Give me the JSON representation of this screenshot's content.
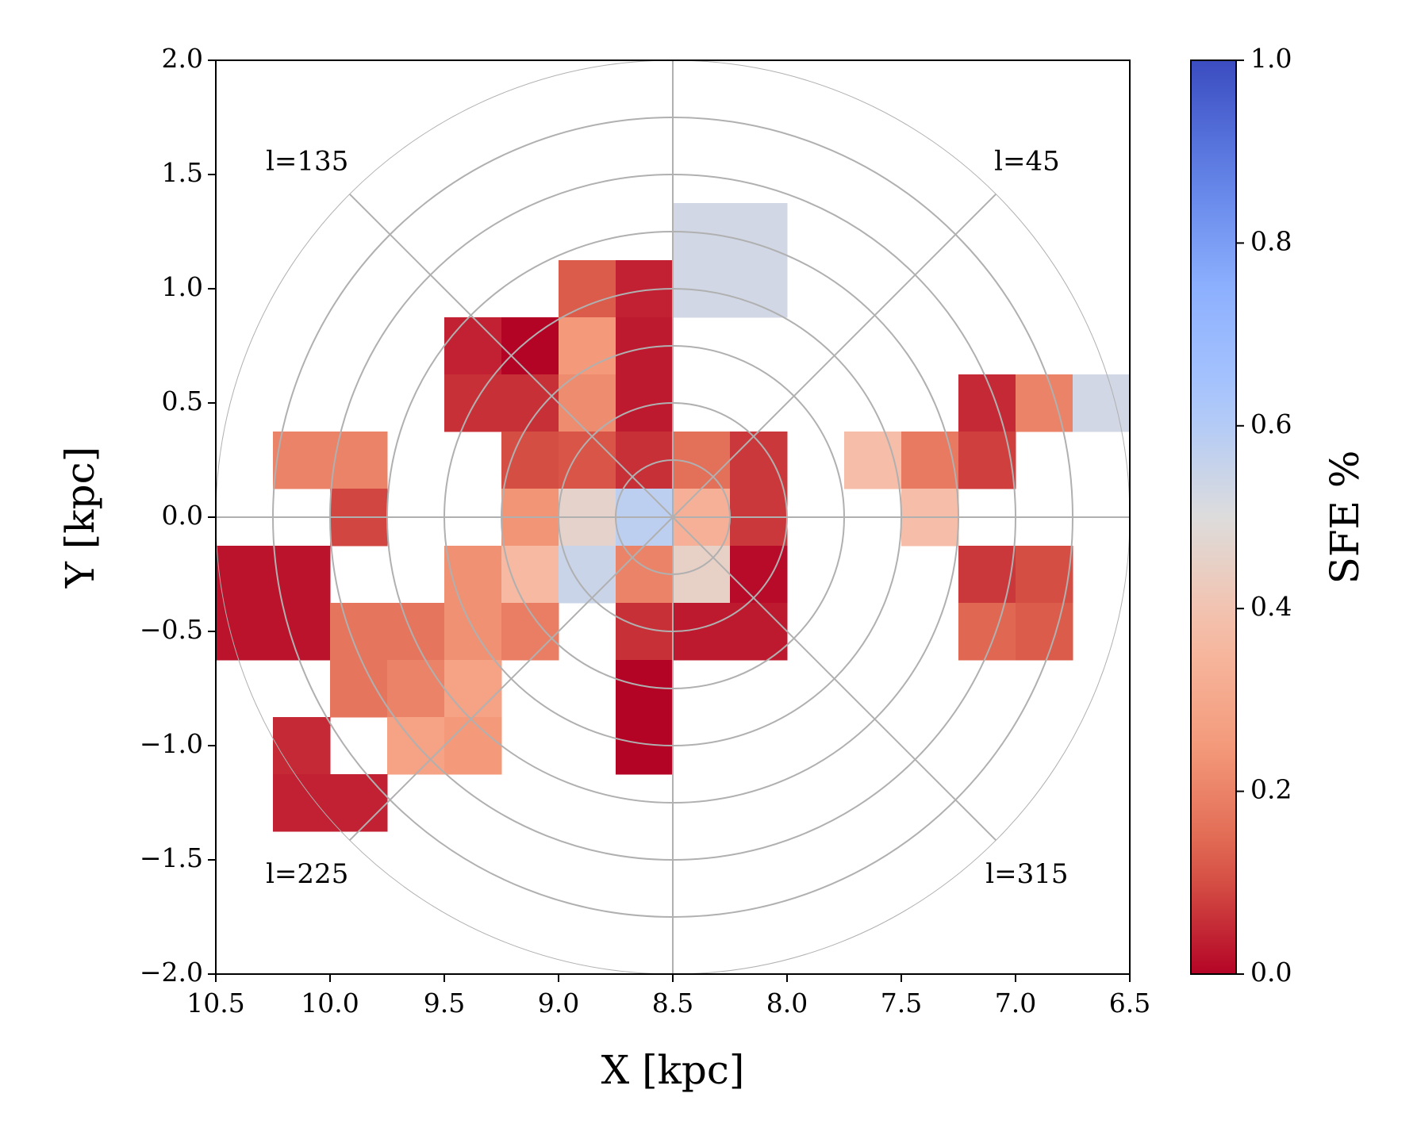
{
  "chart_data": {
    "type": "heatmap",
    "title": "",
    "xlabel": "X [kpc]",
    "ylabel": "Y [kpc]",
    "xlim": [
      10.5,
      6.5
    ],
    "ylim": [
      -2.0,
      2.0
    ],
    "x_ticks": [
      "10.5",
      "10.0",
      "9.5",
      "9.0",
      "8.5",
      "8.0",
      "7.5",
      "7.0",
      "6.5"
    ],
    "y_ticks": [
      "2.0",
      "1.5",
      "1.0",
      "0.5",
      "0.0",
      "−0.5",
      "−1.0",
      "−1.5",
      "−2.0"
    ],
    "polar_grid": {
      "center": [
        8.5,
        0.0
      ],
      "radii_kpc": [
        0.25,
        0.5,
        0.75,
        1.0,
        1.25,
        1.5,
        1.75,
        2.0
      ],
      "spoke_angles_deg": [
        0,
        45,
        90,
        135,
        180,
        225,
        270,
        315
      ]
    },
    "annotations": [
      {
        "text": "l=135",
        "x": 10.1,
        "y": 1.55
      },
      {
        "text": "l=45",
        "x": 6.95,
        "y": 1.55
      },
      {
        "text": "l=225",
        "x": 10.1,
        "y": -1.57
      },
      {
        "text": "l=315",
        "x": 6.95,
        "y": -1.57
      }
    ],
    "colorbar": {
      "label": "SFE %",
      "colormap": "coolwarm_r",
      "range": [
        0.0,
        1.0
      ],
      "ticks": [
        "0.0",
        "0.2",
        "0.4",
        "0.6",
        "0.8",
        "1.0"
      ]
    },
    "cell_size_kpc": 0.25,
    "cells": [
      {
        "x": 8.375,
        "y": 1.25,
        "v": 0.53
      },
      {
        "x": 8.125,
        "y": 1.25,
        "v": 0.53
      },
      {
        "x": 8.375,
        "y": 1.0,
        "v": 0.53
      },
      {
        "x": 8.125,
        "y": 1.0,
        "v": 0.53
      },
      {
        "x": 8.875,
        "y": 1.0,
        "v": 0.12
      },
      {
        "x": 8.625,
        "y": 1.0,
        "v": 0.04
      },
      {
        "x": 9.375,
        "y": 0.75,
        "v": 0.04
      },
      {
        "x": 9.125,
        "y": 0.75,
        "v": 0.0
      },
      {
        "x": 8.875,
        "y": 0.75,
        "v": 0.25
      },
      {
        "x": 8.625,
        "y": 0.75,
        "v": 0.03
      },
      {
        "x": 9.375,
        "y": 0.5,
        "v": 0.06
      },
      {
        "x": 9.125,
        "y": 0.5,
        "v": 0.06
      },
      {
        "x": 8.875,
        "y": 0.5,
        "v": 0.22
      },
      {
        "x": 8.625,
        "y": 0.5,
        "v": 0.03
      },
      {
        "x": 7.125,
        "y": 0.5,
        "v": 0.05
      },
      {
        "x": 6.875,
        "y": 0.5,
        "v": 0.2
      },
      {
        "x": 6.625,
        "y": 0.5,
        "v": 0.53
      },
      {
        "x": 10.125,
        "y": 0.25,
        "v": 0.2
      },
      {
        "x": 9.875,
        "y": 0.25,
        "v": 0.2
      },
      {
        "x": 9.125,
        "y": 0.25,
        "v": 0.1
      },
      {
        "x": 8.875,
        "y": 0.25,
        "v": 0.11
      },
      {
        "x": 8.625,
        "y": 0.25,
        "v": 0.06
      },
      {
        "x": 8.375,
        "y": 0.25,
        "v": 0.16
      },
      {
        "x": 8.125,
        "y": 0.25,
        "v": 0.07
      },
      {
        "x": 7.625,
        "y": 0.25,
        "v": 0.38
      },
      {
        "x": 7.375,
        "y": 0.25,
        "v": 0.18
      },
      {
        "x": 7.125,
        "y": 0.25,
        "v": 0.08
      },
      {
        "x": 9.875,
        "y": 0.0,
        "v": 0.09
      },
      {
        "x": 9.125,
        "y": 0.0,
        "v": 0.24
      },
      {
        "x": 8.875,
        "y": 0.0,
        "v": 0.46
      },
      {
        "x": 8.625,
        "y": 0.0,
        "v": 0.58
      },
      {
        "x": 8.375,
        "y": 0.0,
        "v": 0.33
      },
      {
        "x": 8.125,
        "y": 0.0,
        "v": 0.07
      },
      {
        "x": 7.375,
        "y": 0.0,
        "v": 0.38
      },
      {
        "x": 10.375,
        "y": -0.25,
        "v": 0.02
      },
      {
        "x": 10.125,
        "y": -0.25,
        "v": 0.02
      },
      {
        "x": 9.375,
        "y": -0.25,
        "v": 0.23
      },
      {
        "x": 9.125,
        "y": -0.25,
        "v": 0.36
      },
      {
        "x": 8.875,
        "y": -0.25,
        "v": 0.55
      },
      {
        "x": 8.625,
        "y": -0.25,
        "v": 0.2
      },
      {
        "x": 8.375,
        "y": -0.25,
        "v": 0.45
      },
      {
        "x": 8.125,
        "y": -0.25,
        "v": 0.01
      },
      {
        "x": 7.125,
        "y": -0.25,
        "v": 0.07
      },
      {
        "x": 6.875,
        "y": -0.25,
        "v": 0.1
      },
      {
        "x": 10.375,
        "y": -0.5,
        "v": 0.02
      },
      {
        "x": 10.125,
        "y": -0.5,
        "v": 0.02
      },
      {
        "x": 9.875,
        "y": -0.5,
        "v": 0.17
      },
      {
        "x": 9.625,
        "y": -0.5,
        "v": 0.17
      },
      {
        "x": 9.375,
        "y": -0.5,
        "v": 0.23
      },
      {
        "x": 9.125,
        "y": -0.5,
        "v": 0.19
      },
      {
        "x": 8.625,
        "y": -0.5,
        "v": 0.06
      },
      {
        "x": 8.375,
        "y": -0.5,
        "v": 0.03
      },
      {
        "x": 8.125,
        "y": -0.5,
        "v": 0.03
      },
      {
        "x": 7.125,
        "y": -0.5,
        "v": 0.14
      },
      {
        "x": 6.875,
        "y": -0.5,
        "v": 0.12
      },
      {
        "x": 9.875,
        "y": -0.75,
        "v": 0.17
      },
      {
        "x": 9.625,
        "y": -0.75,
        "v": 0.2
      },
      {
        "x": 9.375,
        "y": -0.75,
        "v": 0.28
      },
      {
        "x": 8.625,
        "y": -0.75,
        "v": 0.0
      },
      {
        "x": 10.125,
        "y": -1.0,
        "v": 0.05
      },
      {
        "x": 9.625,
        "y": -1.0,
        "v": 0.28
      },
      {
        "x": 9.375,
        "y": -1.0,
        "v": 0.25
      },
      {
        "x": 8.625,
        "y": -1.0,
        "v": 0.0
      },
      {
        "x": 10.125,
        "y": -1.25,
        "v": 0.04
      },
      {
        "x": 9.875,
        "y": -1.25,
        "v": 0.04
      }
    ]
  }
}
